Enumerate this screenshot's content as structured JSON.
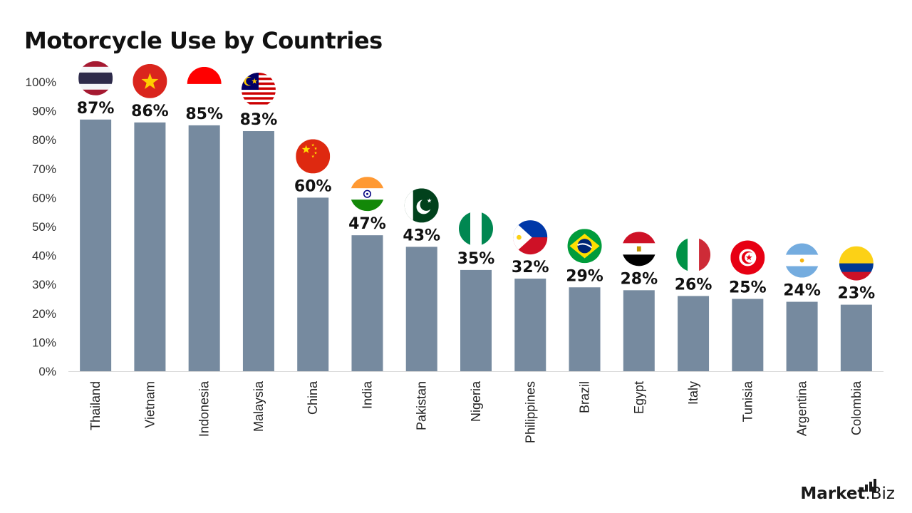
{
  "chart_data": {
    "type": "bar",
    "title": "Motorcycle Use by Countries",
    "categories": [
      "Thailand",
      "Vietnam",
      "Indonesia",
      "Malaysia",
      "China",
      "India",
      "Pakistan",
      "Nigeria",
      "Philippines",
      "Brazil",
      "Egypt",
      "Italy",
      "Tunisia",
      "Argentina",
      "Colombia"
    ],
    "values": [
      87,
      86,
      85,
      83,
      60,
      47,
      43,
      35,
      32,
      29,
      28,
      26,
      25,
      24,
      23
    ],
    "value_labels": [
      "87%",
      "86%",
      "85%",
      "83%",
      "60%",
      "47%",
      "43%",
      "35%",
      "32%",
      "29%",
      "28%",
      "26%",
      "25%",
      "24%",
      "23%"
    ],
    "ylim": [
      0,
      100
    ],
    "yticks": [
      "0%",
      "10%",
      "20%",
      "30%",
      "40%",
      "50%",
      "60%",
      "70%",
      "80%",
      "90%",
      "100%"
    ],
    "bar_color": "#768a9f",
    "grid": false,
    "legend": "none",
    "flag_icons": [
      "thailand-flag-icon",
      "vietnam-flag-icon",
      "indonesia-flag-icon",
      "malaysia-flag-icon",
      "china-flag-icon",
      "india-flag-icon",
      "pakistan-flag-icon",
      "nigeria-flag-icon",
      "philippines-flag-icon",
      "brazil-flag-icon",
      "egypt-flag-icon",
      "italy-flag-icon",
      "tunisia-flag-icon",
      "argentina-flag-icon",
      "colombia-flag-icon"
    ]
  },
  "brand": {
    "name_bold": "Market",
    "name_rest": ".Biz"
  }
}
